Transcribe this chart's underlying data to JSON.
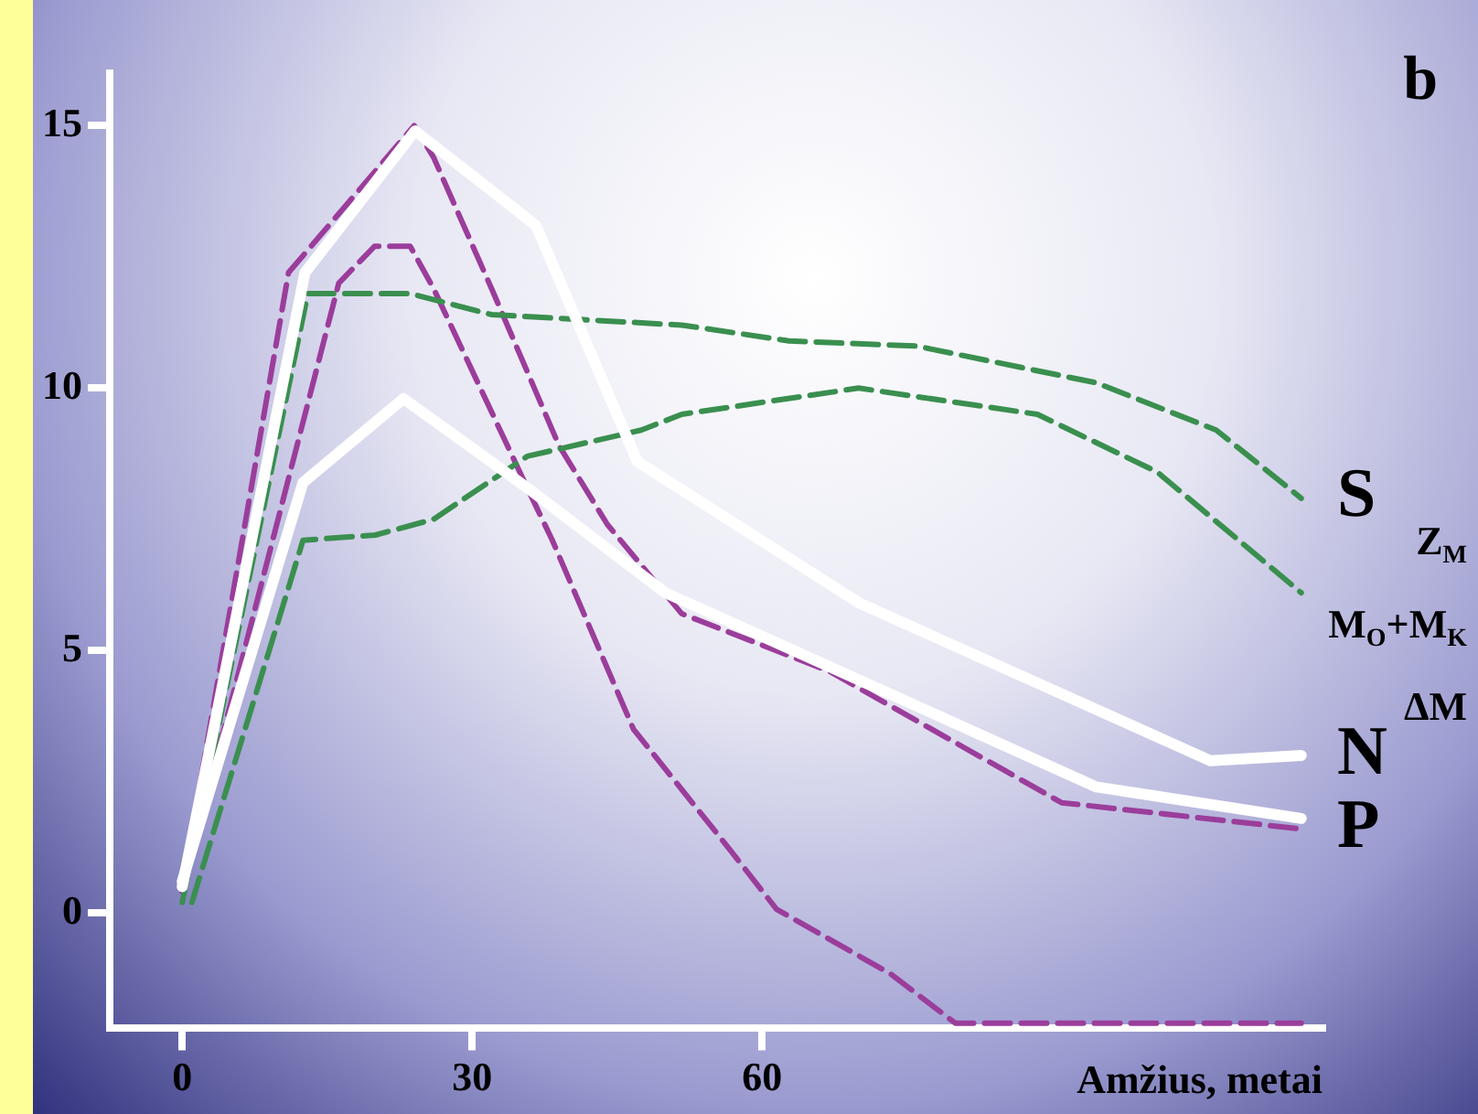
{
  "chart_data": {
    "type": "line",
    "xlabel": "Amžius, metai",
    "xlim": [
      -7.5,
      118
    ],
    "xticks": [
      0,
      30,
      60
    ],
    "ylim": [
      -2.2,
      16
    ],
    "yticks": [
      0,
      5,
      10,
      15
    ],
    "grid": false,
    "legend": false,
    "marker": "none",
    "annotations": [
      "b",
      "Z$_{M}$",
      "M$_{O}$+M$_{K}$",
      "ΔM"
    ],
    "series": [
      {
        "name": "S",
        "color": "#3a8f4f",
        "line_style": "dashed",
        "x": [
          0,
          13,
          23.6,
          32,
          51.7,
          62.8,
          76,
          94.6,
          107,
          115.8
        ],
        "values": [
          0.2,
          11.8,
          11.8,
          11.4,
          11.2,
          10.9,
          10.8,
          10.1,
          9.2,
          7.9
        ]
      },
      {
        "color": "#3a8f4f",
        "line_style": "dashed",
        "x": [
          1,
          12.5,
          20,
          26,
          35.7,
          47.5,
          51.7,
          70,
          88.5,
          100.9,
          115.8
        ],
        "values": [
          0.2,
          7.1,
          7.2,
          7.5,
          8.7,
          9.2,
          9.5,
          10.0,
          9.5,
          8.4,
          6.1
        ]
      },
      {
        "name": "P",
        "color": "#9b3d9b",
        "line_style": "dashed",
        "x": [
          0,
          11,
          24,
          26,
          32,
          39,
          44,
          51.7,
          67,
          91,
          115.8
        ],
        "values": [
          0.5,
          12.2,
          15,
          14.4,
          11.9,
          8.9,
          7.4,
          5.7,
          4.6,
          2.1,
          1.6
        ]
      },
      {
        "color": "#9b3d9b",
        "line_style": "dashed",
        "x": [
          0,
          16.2,
          19.9,
          23.6,
          26,
          35.7,
          38.3,
          46.7,
          56.7,
          61.5,
          73.3,
          80,
          115.8
        ],
        "values": [
          0.4,
          12.0,
          12.7,
          12.7,
          11.9,
          8.1,
          7.1,
          3.5,
          1.2,
          0.07,
          -1.16,
          -2.1,
          -2.1
        ]
      },
      {
        "name": "N",
        "color": "#ffffff",
        "line_style": "solid",
        "x": [
          0,
          12.7,
          24.1,
          36.6,
          47.1,
          70.1,
          106.4,
          115.8
        ],
        "values": [
          0.5,
          12.2,
          14.9,
          13.1,
          8.6,
          5.9,
          2.9,
          3.0
        ]
      },
      {
        "color": "#ffffff",
        "line_style": "solid",
        "x": [
          0,
          12.5,
          22.9,
          35.7,
          50,
          94.6,
          115.8
        ],
        "values": [
          0.6,
          8.2,
          9.8,
          8.1,
          6.1,
          2.4,
          1.8
        ]
      }
    ]
  }
}
